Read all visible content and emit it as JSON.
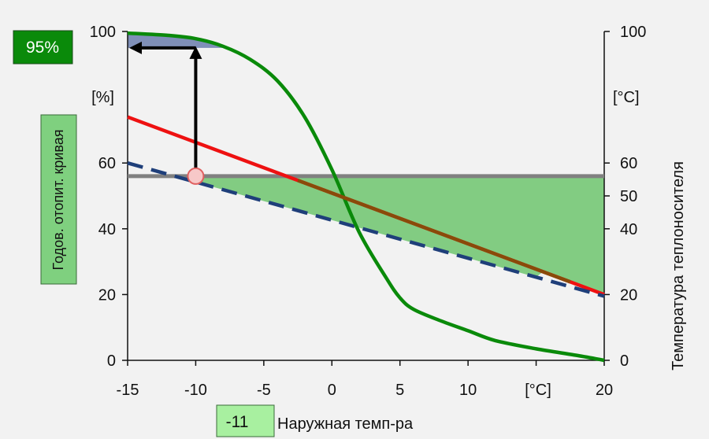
{
  "chart_data": {
    "type": "line",
    "x_axis": {
      "label": "Наружная темп-ра",
      "unit": "[°C]",
      "min": -15,
      "max": 20,
      "ticks": [
        -15,
        -10,
        -5,
        0,
        5,
        10,
        20
      ],
      "tick_labels": [
        "-15",
        "-10",
        "-5",
        "0",
        "5",
        "10",
        "20"
      ]
    },
    "y_left": {
      "unit": "[%]",
      "min": 0,
      "max": 100,
      "ticks": [
        0,
        20,
        40,
        60,
        100
      ],
      "tick_labels": [
        "0",
        "20",
        "40",
        "60",
        "100"
      ]
    },
    "y_right": {
      "label": "Температура теплоносителя",
      "unit": "[°C]",
      "min": 0,
      "max": 100,
      "ticks": [
        0,
        20,
        40,
        50,
        60,
        100
      ],
      "tick_labels": [
        "0",
        "20",
        "40",
        "50",
        "60",
        "100"
      ]
    },
    "series": [
      {
        "key": "cumulative",
        "color": "#0a8a0a",
        "style": "solid",
        "x": [
          -15,
          -12,
          -10,
          -8,
          -6,
          -4,
          -2,
          0,
          2,
          4,
          5,
          6,
          8,
          10,
          12,
          15,
          18,
          20
        ],
        "values": [
          99.5,
          98.8,
          97.8,
          95.5,
          91.5,
          85,
          74,
          58,
          39,
          25,
          19,
          15.5,
          12,
          9,
          6,
          3.5,
          1.5,
          0
        ]
      },
      {
        "key": "heating_curve",
        "color": "#ee1111",
        "style": "solid",
        "x": [
          -15,
          20
        ],
        "values": [
          74,
          20
        ]
      },
      {
        "key": "dashed_curve",
        "color": "#1f3f7a",
        "style": "dashed",
        "x": [
          -15,
          20
        ],
        "values": [
          60,
          19.5
        ]
      },
      {
        "key": "limit_line",
        "color": "#808080",
        "style": "solid",
        "x": [
          -15,
          20
        ],
        "values": [
          56,
          56
        ]
      }
    ],
    "marker_point": {
      "x": -10,
      "y": 56
    },
    "result_value": 95,
    "annotations": {
      "result_badge": "95%",
      "x_input_badge": "-11",
      "left_vertical_badge": "Годов. отопит. кривая"
    },
    "colors": {
      "green_fill": "#82cc82",
      "blue_fill": "#7f8fb8",
      "overlap_line": "#8a4a0a",
      "badge_dark_green": "#0a8a0a",
      "badge_light_green": "#a8f0a0",
      "badge_mid_green": "#7fd07f"
    }
  }
}
